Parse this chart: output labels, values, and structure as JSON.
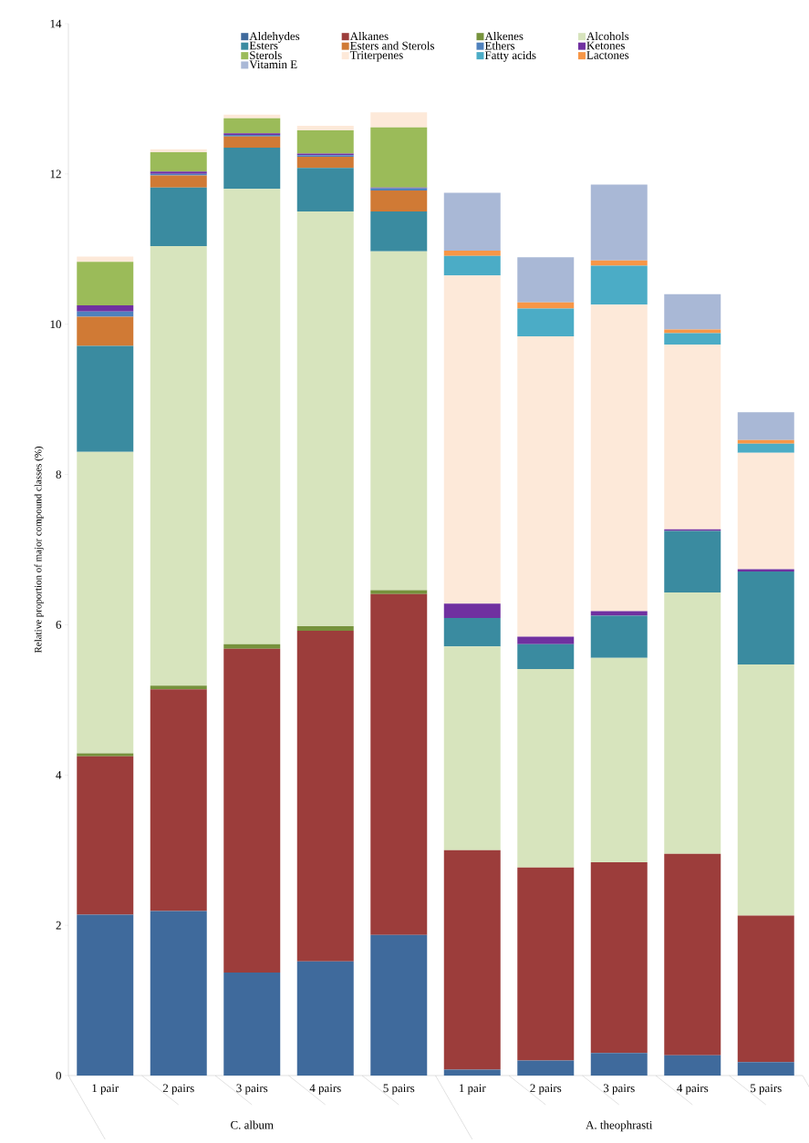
{
  "chart_data": {
    "type": "bar",
    "stacked": true,
    "ylabel": "Relative proportion of major compound classes (%)",
    "categories": [
      "1 pair",
      "2 pairs",
      "3 pairs",
      "4 pairs",
      "5 pairs",
      "1 pair",
      "2 pairs",
      "3 pairs",
      "4 pairs",
      "5 pairs"
    ],
    "annotations": [
      "C. album",
      "A. theophrasti"
    ],
    "ylim": [
      0,
      14
    ],
    "yticks": [
      0,
      2,
      4,
      6,
      8,
      10,
      12,
      14
    ],
    "grid": false,
    "legend": "top",
    "series": [
      {
        "name": "Aldehydes",
        "color": "#3f6a9c",
        "values": [
          2.14,
          2.19,
          1.37,
          1.52,
          1.87,
          0.08,
          0.2,
          0.3,
          0.27,
          0.18
        ]
      },
      {
        "name": "Alkanes",
        "color": "#9c3d3b",
        "values": [
          2.11,
          2.95,
          4.31,
          4.4,
          4.54,
          2.92,
          2.57,
          2.54,
          2.68,
          1.95
        ]
      },
      {
        "name": "Alkenes",
        "color": "#76923c",
        "values": [
          0.04,
          0.05,
          0.06,
          0.06,
          0.05,
          0,
          0,
          0,
          0,
          0
        ]
      },
      {
        "name": "Alcohols",
        "color": "#d7e4bd",
        "values": [
          4.01,
          5.85,
          6.06,
          5.52,
          4.51,
          2.71,
          2.64,
          2.72,
          3.48,
          3.34
        ]
      },
      {
        "name": "Esters",
        "color": "#3a8ba0",
        "values": [
          1.41,
          0.78,
          0.55,
          0.58,
          0.53,
          0.38,
          0.33,
          0.56,
          0.82,
          1.24
        ]
      },
      {
        "name": "Esters and Sterols",
        "color": "#d07a35",
        "values": [
          0.39,
          0.16,
          0.15,
          0.15,
          0.28,
          0,
          0,
          0,
          0,
          0
        ]
      },
      {
        "name": "Ethers",
        "color": "#4f81bd",
        "values": [
          0.07,
          0.02,
          0.02,
          0.02,
          0.03,
          0,
          0,
          0,
          0,
          0
        ]
      },
      {
        "name": "Ketones",
        "color": "#7030a0",
        "values": [
          0.08,
          0.03,
          0.02,
          0.02,
          0.01,
          0.19,
          0.1,
          0.06,
          0.02,
          0.03
        ]
      },
      {
        "name": "Sterols",
        "color": "#9bbb59",
        "values": [
          0.58,
          0.26,
          0.2,
          0.31,
          0.8,
          0,
          0,
          0,
          0,
          0
        ]
      },
      {
        "name": "Triterpenes",
        "color": "#fde9d9",
        "values": [
          0.07,
          0.04,
          0.05,
          0.06,
          0.2,
          4.37,
          4.0,
          4.08,
          2.46,
          1.55
        ]
      },
      {
        "name": "Fatty acids",
        "color": "#4bacc6",
        "values": [
          0,
          0,
          0,
          0,
          0,
          0.26,
          0.37,
          0.52,
          0.15,
          0.12
        ]
      },
      {
        "name": "Lactones",
        "color": "#f79646",
        "values": [
          0,
          0,
          0,
          0,
          0,
          0.07,
          0.08,
          0.07,
          0.05,
          0.05
        ]
      },
      {
        "name": "Vitamin E",
        "color": "#a9b8d6",
        "values": [
          0,
          0,
          0,
          0,
          0,
          0.77,
          0.6,
          1.01,
          0.47,
          0.37
        ]
      }
    ]
  }
}
